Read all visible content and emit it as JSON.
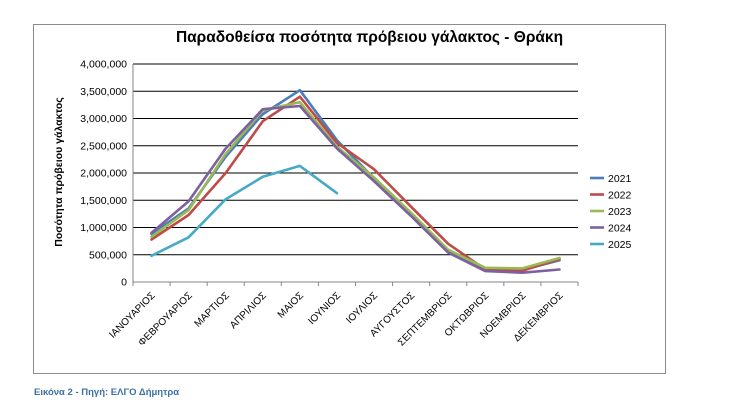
{
  "caption": "Εικόνα 2 - Πηγή: ΕΛΓΟ Δήμητρα",
  "chart_data": {
    "type": "line",
    "title": "Παραδοθείσα ποσότητα πρόβειου γάλακτος - Θράκη",
    "xlabel": "",
    "ylabel": "Ποσότητα πρόβειου γάλακτος",
    "ylim": [
      0,
      4000000
    ],
    "yticks": [
      0,
      500000,
      1000000,
      1500000,
      2000000,
      2500000,
      3000000,
      3500000,
      4000000
    ],
    "ytick_labels": [
      "0",
      "500,000",
      "1,000,000",
      "1,500,000",
      "2,000,000",
      "2,500,000",
      "3,000,000",
      "3,500,000",
      "4,000,000"
    ],
    "grid": "horizontal",
    "legend": "right",
    "categories": [
      "ΙΑΝΟΥΑΡΙΟΣ",
      "ΦΕΒΡΟΥΑΡΙΟΣ",
      "ΜΑΡΤΙΟΣ",
      "ΑΠΡΙΛΙΟΣ",
      "ΜΑΙΟΣ",
      "ΙΟΥΝΙΟΣ",
      "ΙΟΥΛΙΟΣ",
      "ΑΥΓΟΥΣΤΟΣ",
      "ΣΕΠΤΕΜΒΡΙΟΣ",
      "ΟΚΤΩΒΡΙΟΣ",
      "ΝΟΕΜΒΡΙΟΣ",
      "ΔΕΚΕΜΒΡΙΟΣ"
    ],
    "series": [
      {
        "name": "2021",
        "color": "#4a7ebb",
        "values": [
          880000,
          1350000,
          2300000,
          3080000,
          3520000,
          2600000,
          1900000,
          1250000,
          560000,
          230000,
          220000,
          400000
        ]
      },
      {
        "name": "2022",
        "color": "#be4b48",
        "values": [
          780000,
          1230000,
          2000000,
          2950000,
          3400000,
          2550000,
          2070000,
          1380000,
          700000,
          230000,
          210000,
          420000
        ]
      },
      {
        "name": "2023",
        "color": "#98b954",
        "values": [
          830000,
          1320000,
          2350000,
          3150000,
          3300000,
          2480000,
          1920000,
          1270000,
          590000,
          260000,
          250000,
          440000
        ]
      },
      {
        "name": "2024",
        "color": "#7d60a0",
        "values": [
          900000,
          1480000,
          2450000,
          3170000,
          3230000,
          2450000,
          1850000,
          1210000,
          540000,
          200000,
          170000,
          230000
        ]
      },
      {
        "name": "2025",
        "color": "#46aac5",
        "values": [
          480000,
          820000,
          1520000,
          1930000,
          2130000,
          1630000,
          null,
          null,
          null,
          null,
          null,
          null
        ]
      }
    ]
  }
}
